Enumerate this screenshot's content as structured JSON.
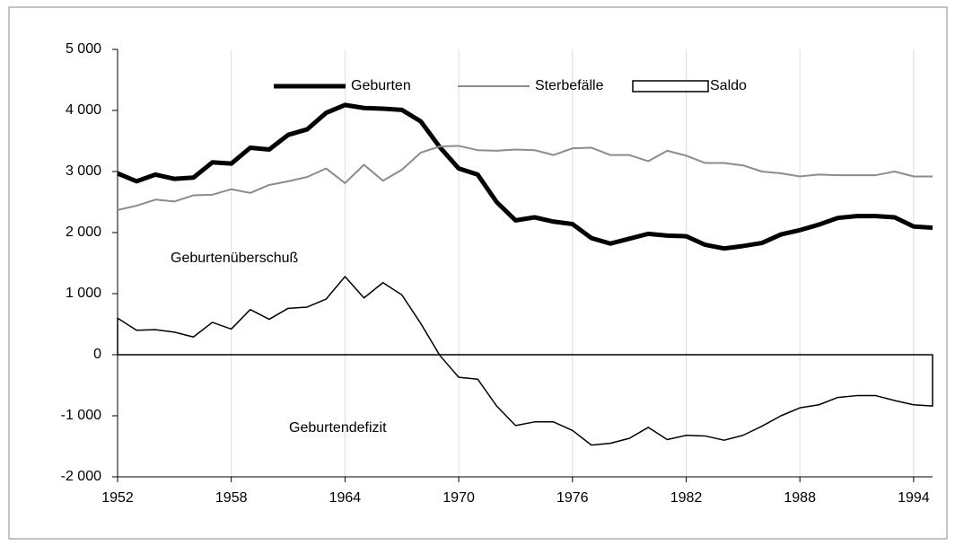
{
  "chart_data": {
    "type": "line",
    "x": [
      1952,
      1953,
      1954,
      1955,
      1956,
      1957,
      1958,
      1959,
      1960,
      1961,
      1962,
      1963,
      1964,
      1965,
      1966,
      1967,
      1968,
      1969,
      1970,
      1971,
      1972,
      1973,
      1974,
      1975,
      1976,
      1977,
      1978,
      1979,
      1980,
      1981,
      1982,
      1983,
      1984,
      1985,
      1986,
      1987,
      1988,
      1989,
      1990,
      1991,
      1992,
      1993,
      1994,
      1995
    ],
    "series": [
      {
        "name": "Geburten",
        "color": "#000000",
        "values": [
          2970,
          2840,
          2950,
          2880,
          2900,
          3150,
          3130,
          3390,
          3360,
          3600,
          3690,
          3960,
          4090,
          4040,
          4030,
          4010,
          3820,
          3400,
          3050,
          2950,
          2500,
          2200,
          2250,
          2180,
          2140,
          1910,
          1820,
          1900,
          1980,
          1950,
          1940,
          1800,
          1740,
          1780,
          1830,
          1970,
          2040,
          2130,
          2240,
          2270,
          2270,
          2250,
          2100,
          2080
        ]
      },
      {
        "name": "Sterbefälle",
        "color": "#8c8c8c",
        "values": [
          2370,
          2440,
          2540,
          2510,
          2610,
          2620,
          2710,
          2650,
          2780,
          2840,
          2910,
          3050,
          2810,
          3110,
          2850,
          3030,
          3310,
          3410,
          3420,
          3350,
          3340,
          3360,
          3350,
          3270,
          3380,
          3390,
          3270,
          3270,
          3170,
          3340,
          3260,
          3140,
          3140,
          3100,
          3000,
          2970,
          2920,
          2950,
          2940,
          2940,
          2940,
          3000,
          2920,
          2920
        ]
      },
      {
        "name": "Saldo",
        "color": "#000000",
        "values": [
          600,
          400,
          410,
          370,
          290,
          530,
          420,
          740,
          580,
          760,
          780,
          910,
          1280,
          930,
          1180,
          980,
          510,
          -10,
          -370,
          -400,
          -840,
          -1160,
          -1100,
          -1100,
          -1240,
          -1480,
          -1450,
          -1370,
          -1190,
          -1390,
          -1320,
          -1330,
          -1400,
          -1320,
          -1170,
          -1000,
          -870,
          -820,
          -700,
          -670,
          -670,
          -750,
          -820,
          -840
        ]
      }
    ],
    "annotations": [
      "Geburtenüberschuß",
      "Geburtendefizit"
    ],
    "xlim": [
      1952,
      1995
    ],
    "xticks": [
      1952,
      1958,
      1964,
      1970,
      1976,
      1982,
      1988,
      1994
    ],
    "ylim": [
      -2000,
      5000
    ],
    "yticks": [
      {
        "value": -2000,
        "label": "-2 000"
      },
      {
        "value": -1000,
        "label": "-1 000"
      },
      0,
      {
        "value": 1000,
        "label": "1 000"
      },
      {
        "value": 2000,
        "label": "2 000"
      },
      {
        "value": 3000,
        "label": "3 000"
      },
      {
        "value": 4000,
        "label": "4 000"
      },
      {
        "value": 5000,
        "label": "5 000"
      }
    ],
    "grid": true
  }
}
